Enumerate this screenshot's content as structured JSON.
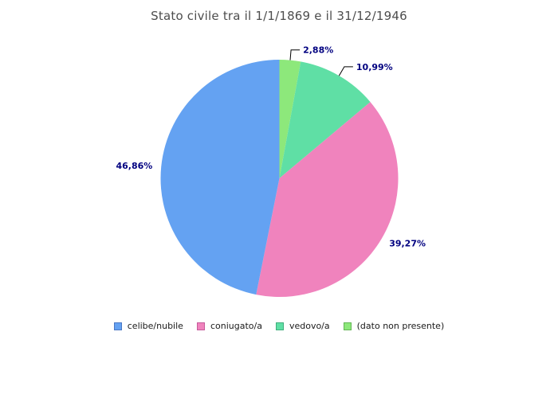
{
  "title": "Stato civile tra il 1/1/1869 e il 31/12/1946",
  "colors": {
    "background": "#ffffff",
    "title_text": "#4d4d4d",
    "legend_text": "#1a1a1a",
    "slice_label_text": "#000080",
    "callout_line": "#000000"
  },
  "chart_data": {
    "type": "pie",
    "title": "Stato civile tra il 1/1/1869 e il 31/12/1946",
    "unit": "%",
    "start_angle": "12 o'clock",
    "winding": "counterclockwise in legend order (clockwise from top: last to first)",
    "legend_position": "bottom",
    "total": 100,
    "slices": [
      {
        "label": "celibe/nubile",
        "value": 46.86,
        "display": "46,86%",
        "color": "#64a2f2",
        "border": "#4a77c4"
      },
      {
        "label": "coniugato/a",
        "value": 39.27,
        "display": "39,27%",
        "color": "#f083bd",
        "border": "#c75a9b"
      },
      {
        "label": "vedovo/a",
        "value": 10.99,
        "display": "10,99%",
        "color": "#5fdfa5",
        "border": "#3fae7c"
      },
      {
        "label": "(dato non presente)",
        "value": 2.88,
        "display": "2,88%",
        "color": "#8de87b",
        "border": "#62b554"
      }
    ]
  }
}
